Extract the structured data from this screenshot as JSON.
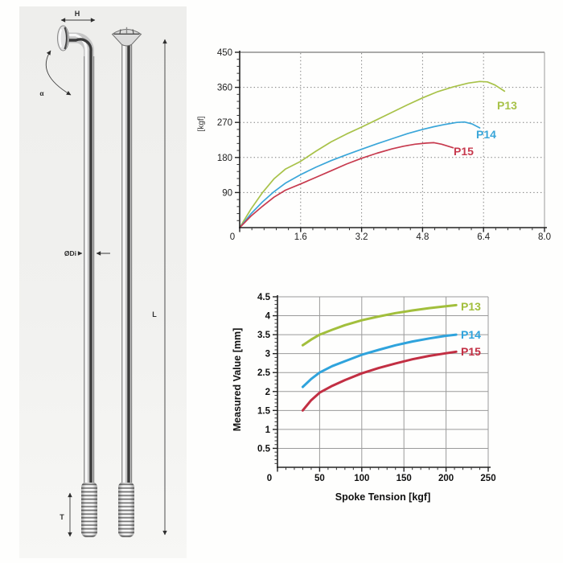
{
  "diagram": {
    "title": "spoke-technical-drawing",
    "labels": {
      "head_width": "H",
      "bend_angle": "α",
      "diameter": "ØDi",
      "length": "L",
      "thread": "T"
    }
  },
  "chart_data": [
    {
      "type": "line",
      "title": "",
      "xlabel": "",
      "ylabel": "[kgf]",
      "xlim": [
        0,
        8
      ],
      "ylim": [
        0,
        450
      ],
      "grid": {
        "style": "dotted",
        "x_values": [
          1.6,
          3.2,
          4.8,
          6.4
        ],
        "y_values": [
          90,
          180,
          270,
          360
        ]
      },
      "xticks": {
        "values": [
          0,
          1.6,
          3.2,
          4.8,
          6.4,
          8
        ],
        "labels": [
          "0",
          "1.6",
          "3.2",
          "4.8",
          "6.4",
          "8.0"
        ],
        "minor_step": 0.32
      },
      "yticks": {
        "values": [
          90,
          180,
          270,
          360,
          450
        ],
        "labels": [
          "90",
          "180",
          "270",
          "360",
          "450"
        ],
        "minor_step": 18
      },
      "legend_position": "right-of-curve-ends",
      "series": [
        {
          "name": "P13",
          "color": "#a8c249",
          "x": [
            0,
            0.3,
            0.6,
            0.9,
            1.2,
            1.6,
            2.0,
            2.4,
            2.8,
            3.2,
            3.6,
            4.0,
            4.4,
            4.8,
            5.2,
            5.6,
            6.0,
            6.3,
            6.5,
            6.7,
            6.95
          ],
          "y": [
            0,
            48,
            90,
            125,
            150,
            170,
            196,
            220,
            240,
            258,
            277,
            296,
            315,
            333,
            349,
            361,
            371,
            375,
            374,
            366,
            350
          ]
        },
        {
          "name": "P14",
          "color": "#3aa6d9",
          "x": [
            0,
            0.3,
            0.6,
            0.9,
            1.2,
            1.6,
            2.0,
            2.4,
            2.8,
            3.2,
            3.6,
            4.0,
            4.4,
            4.8,
            5.1,
            5.4,
            5.7,
            5.9,
            6.1,
            6.3
          ],
          "y": [
            0,
            36,
            66,
            92,
            114,
            136,
            155,
            172,
            187,
            201,
            215,
            228,
            241,
            252,
            259,
            265,
            270,
            271,
            266,
            256
          ]
        },
        {
          "name": "P15",
          "color": "#c73a4e",
          "x": [
            0,
            0.3,
            0.6,
            0.9,
            1.2,
            1.6,
            2.0,
            2.4,
            2.8,
            3.2,
            3.6,
            4.0,
            4.3,
            4.6,
            4.9,
            5.1,
            5.3,
            5.6
          ],
          "y": [
            0,
            30,
            55,
            78,
            96,
            112,
            129,
            146,
            163,
            178,
            191,
            202,
            209,
            214,
            217,
            218,
            214,
            205
          ]
        }
      ]
    },
    {
      "type": "line",
      "title": "",
      "xlabel": "Spoke Tension [kgf]",
      "ylabel": "Measured Value [mm]",
      "xlim": [
        0,
        250
      ],
      "ylim": [
        0,
        4.5
      ],
      "grid": {
        "style": "solid",
        "x_values": [
          50,
          100,
          150,
          200,
          250
        ],
        "y_values": [
          0.5,
          1,
          1.5,
          2,
          2.5,
          3,
          3.5,
          4,
          4.5
        ]
      },
      "xticks": {
        "values": [
          0,
          50,
          100,
          150,
          200,
          250
        ],
        "labels": [
          "0",
          "50",
          "100",
          "150",
          "200",
          "250"
        ],
        "minor_step": 10
      },
      "yticks": {
        "values": [
          0.5,
          1,
          1.5,
          2,
          2.5,
          3,
          3.5,
          4,
          4.5
        ],
        "labels": [
          "0.5",
          "1",
          "1.5",
          "2",
          "2.5",
          "3",
          "3.5",
          "4",
          "4.5"
        ],
        "minor_step": 0.1
      },
      "legend_position": "right-of-curve-ends",
      "series": [
        {
          "name": "P13",
          "color": "#a2bf3c",
          "x": [
            30,
            40,
            50,
            65,
            80,
            100,
            120,
            140,
            160,
            180,
            200,
            212
          ],
          "y": [
            3.22,
            3.37,
            3.5,
            3.63,
            3.75,
            3.88,
            3.98,
            4.07,
            4.14,
            4.2,
            4.25,
            4.28
          ]
        },
        {
          "name": "P14",
          "color": "#2fa3dc",
          "x": [
            30,
            40,
            50,
            65,
            80,
            100,
            120,
            140,
            160,
            180,
            200,
            212
          ],
          "y": [
            2.12,
            2.33,
            2.5,
            2.67,
            2.8,
            2.97,
            3.1,
            3.22,
            3.32,
            3.4,
            3.47,
            3.5
          ]
        },
        {
          "name": "P15",
          "color": "#c22f43",
          "x": [
            30,
            40,
            50,
            65,
            80,
            100,
            120,
            140,
            160,
            180,
            200,
            212
          ],
          "y": [
            1.5,
            1.77,
            1.97,
            2.15,
            2.3,
            2.48,
            2.62,
            2.74,
            2.85,
            2.94,
            3.01,
            3.05
          ]
        }
      ]
    }
  ]
}
